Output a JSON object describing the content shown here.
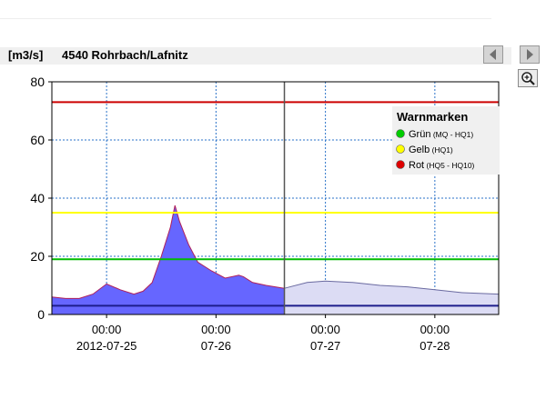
{
  "header": {
    "unit": "[m3/s]",
    "station": "4540 Rohrbach/Lafnitz"
  },
  "icons": {
    "prev": "arrow-left-icon",
    "next": "arrow-right-icon",
    "zoom": "zoom-in-icon"
  },
  "legend": {
    "title": "Warnmarken",
    "items": [
      {
        "label": "Grün",
        "range": "(MQ - HQ1)",
        "color": "#00cc00"
      },
      {
        "label": "Gelb",
        "range": "(HQ1)",
        "color": "#ffff00"
      },
      {
        "label": "Rot",
        "range": "(HQ5 - HQ10)",
        "color": "#dd0000"
      }
    ]
  },
  "chart_data": {
    "type": "area",
    "ylim": [
      0,
      80
    ],
    "yticks": [
      0,
      20,
      40,
      60,
      80
    ],
    "xlim": [
      "2012-07-24 12:00",
      "2012-07-28 14:00"
    ],
    "xticks": [
      {
        "t": "2012-07-25 00:00",
        "time": "00:00",
        "date": "2012-07-25"
      },
      {
        "t": "2012-07-26 00:00",
        "time": "00:00",
        "date": "07-26"
      },
      {
        "t": "2012-07-27 00:00",
        "time": "00:00",
        "date": "07-27"
      },
      {
        "t": "2012-07-28 00:00",
        "time": "00:00",
        "date": "07-28"
      }
    ],
    "current_time": "2012-07-26 15:00",
    "grid": true,
    "legend_position": "top-right",
    "thresholds": [
      {
        "name": "Grün",
        "value": 19,
        "color": "#00bb00"
      },
      {
        "name": "Gelb",
        "value": 35,
        "color": "#ffff00"
      },
      {
        "name": "Rot",
        "value": 73,
        "color": "#cc0000"
      }
    ],
    "baseline_value": 3,
    "series": [
      {
        "role": "measured",
        "color": "#6666ff",
        "points": [
          [
            "2012-07-24 12:00",
            6
          ],
          [
            "2012-07-24 15:00",
            5.5
          ],
          [
            "2012-07-24 18:00",
            5.5
          ],
          [
            "2012-07-24 21:00",
            7
          ],
          [
            "2012-07-25 00:00",
            10.5
          ],
          [
            "2012-07-25 03:00",
            8.5
          ],
          [
            "2012-07-25 06:00",
            7
          ],
          [
            "2012-07-25 08:00",
            8
          ],
          [
            "2012-07-25 10:00",
            11
          ],
          [
            "2012-07-25 12:00",
            20
          ],
          [
            "2012-07-25 14:00",
            30
          ],
          [
            "2012-07-25 15:00",
            37.5
          ],
          [
            "2012-07-25 16:00",
            32
          ],
          [
            "2012-07-25 18:00",
            24
          ],
          [
            "2012-07-25 20:00",
            18
          ],
          [
            "2012-07-25 23:00",
            15
          ],
          [
            "2012-07-26 02:00",
            12.5
          ],
          [
            "2012-07-26 05:00",
            13.5
          ],
          [
            "2012-07-26 06:00",
            13
          ],
          [
            "2012-07-26 08:00",
            11
          ],
          [
            "2012-07-26 11:00",
            10
          ],
          [
            "2012-07-26 15:00",
            9
          ]
        ]
      },
      {
        "role": "forecast",
        "color": "#dcdcf4",
        "points": [
          [
            "2012-07-26 15:00",
            9
          ],
          [
            "2012-07-26 20:00",
            11
          ],
          [
            "2012-07-27 00:00",
            11.5
          ],
          [
            "2012-07-27 06:00",
            11
          ],
          [
            "2012-07-27 12:00",
            10
          ],
          [
            "2012-07-27 18:00",
            9.5
          ],
          [
            "2012-07-28 00:00",
            8.5
          ],
          [
            "2012-07-28 06:00",
            7.5
          ],
          [
            "2012-07-28 14:00",
            7
          ]
        ]
      }
    ]
  }
}
